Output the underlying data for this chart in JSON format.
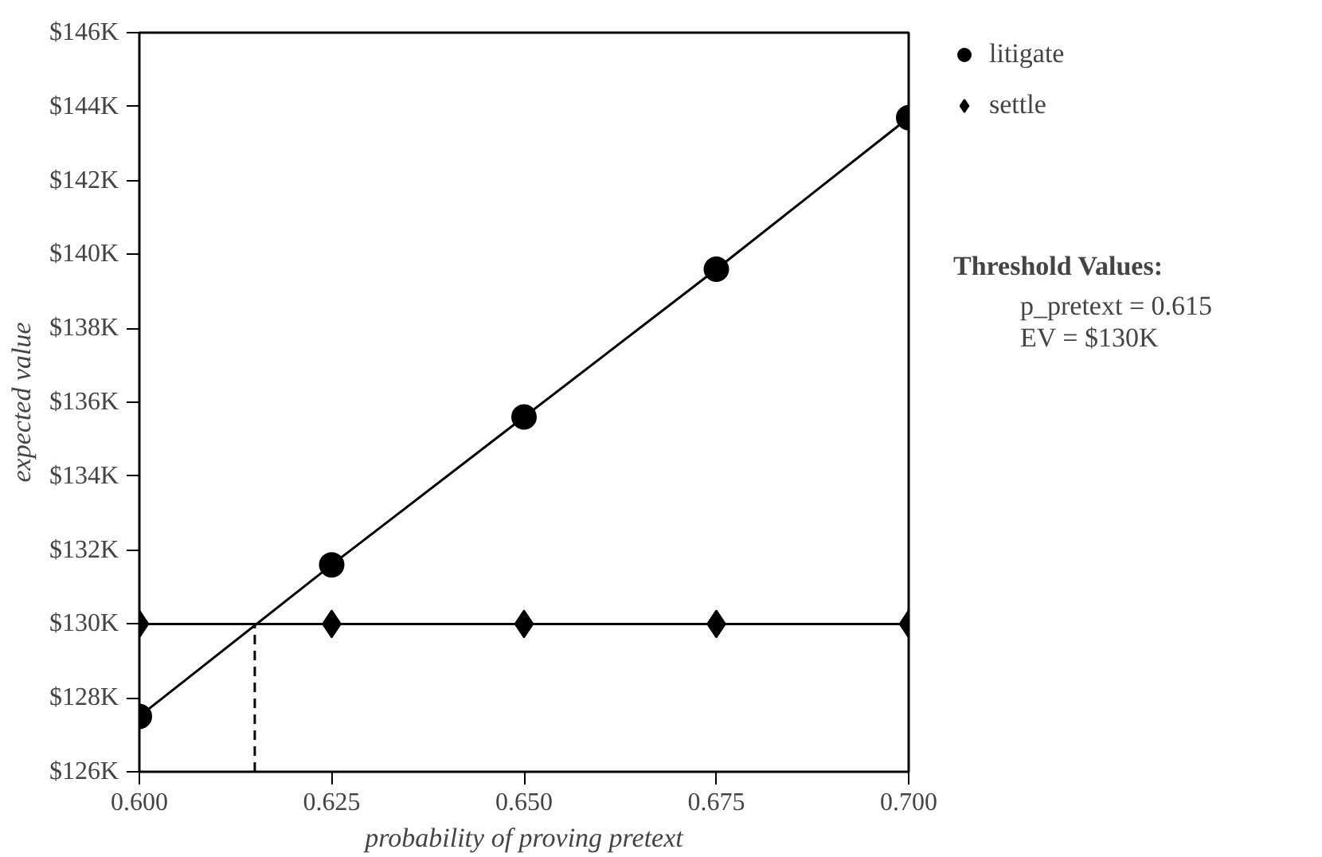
{
  "chart_data": {
    "type": "line",
    "xlabel": "probability of proving pretext",
    "ylabel": "expected value",
    "x": [
      0.6,
      0.625,
      0.65,
      0.675,
      0.7
    ],
    "series": [
      {
        "name": "litigate",
        "color": "#000000",
        "marker": "circle",
        "values": [
          127.5,
          131.6,
          135.6,
          139.6,
          143.7
        ]
      },
      {
        "name": "settle",
        "color": "#000000",
        "marker": "diamond",
        "values": [
          130,
          130,
          130,
          130,
          130
        ]
      },
      {
        "color": "#000000",
        "type": "line",
        "x": [
          0.615,
          0.615
        ],
        "values": [
          126,
          130
        ],
        "line_style": "dashed",
        "marker": "none"
      }
    ],
    "xlim": [
      0.6,
      0.7
    ],
    "ylim": [
      126,
      146
    ],
    "xticks": [
      {
        "value": 0.6,
        "label": "0.600"
      },
      {
        "value": 0.625,
        "label": "0.625"
      },
      {
        "value": 0.65,
        "label": "0.650"
      },
      {
        "value": 0.675,
        "label": "0.675"
      },
      {
        "value": 0.7,
        "label": "0.700"
      }
    ],
    "yticks": [
      {
        "value": 126,
        "label": "$126K"
      },
      {
        "value": 128,
        "label": "$128K"
      },
      {
        "value": 130,
        "label": "$130K"
      },
      {
        "value": 132,
        "label": "$132K"
      },
      {
        "value": 134,
        "label": "$134K"
      },
      {
        "value": 136,
        "label": "$136K"
      },
      {
        "value": 138,
        "label": "$138K"
      },
      {
        "value": 140,
        "label": "$140K"
      },
      {
        "value": 142,
        "label": "$142K"
      },
      {
        "value": 144,
        "label": "$144K"
      },
      {
        "value": 146,
        "label": "$146K"
      }
    ],
    "grid": false,
    "legend": "right",
    "annotations": [
      "Threshold Values:",
      "p_pretext = 0.615",
      "EV = $130K"
    ]
  }
}
